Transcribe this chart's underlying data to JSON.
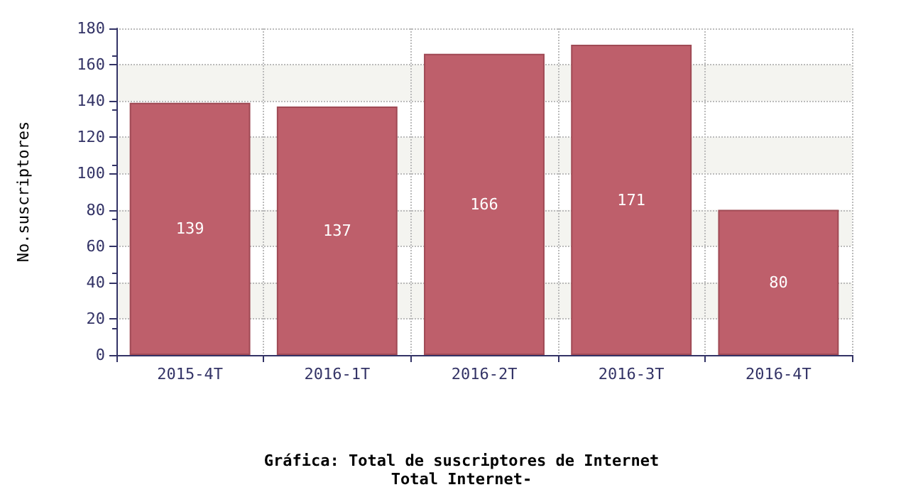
{
  "chart_data": {
    "type": "bar",
    "title": "Gráfica: Total de suscriptores de Internet",
    "subtitle": "Total Internet-",
    "ylabel": "No.suscriptores",
    "categories": [
      "2015-4T",
      "2016-1T",
      "2016-2T",
      "2016-3T",
      "2016-4T"
    ],
    "values": [
      139,
      137,
      166,
      171,
      80
    ],
    "color": "#be5f6b",
    "ylim": [
      0,
      180
    ],
    "yticks": [
      0,
      20,
      40,
      60,
      80,
      100,
      120,
      140,
      160,
      180
    ],
    "grid": true,
    "data_labels": true
  }
}
